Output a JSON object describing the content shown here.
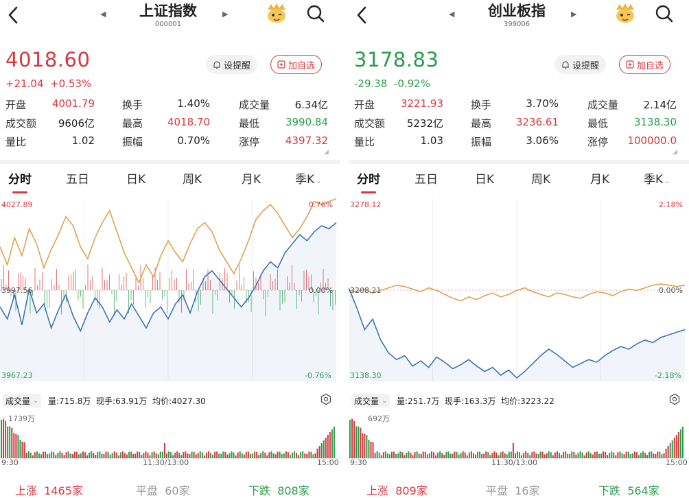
{
  "left": {
    "title": "上证指数",
    "code": "000001",
    "price": "4018.60",
    "change": "+21.04",
    "change_pct": "+0.53%",
    "trend": "up",
    "alert_label": "设提醒",
    "add_label": "加自选",
    "stats": [
      [
        {
          "label": "开盘",
          "value": "4001.79",
          "color": "red"
        },
        {
          "label": "换手",
          "value": "1.40%",
          "color": "black"
        },
        {
          "label": "成交量",
          "value": "6.34亿",
          "color": "black"
        }
      ],
      [
        {
          "label": "成交额",
          "value": "9606亿",
          "color": "black"
        },
        {
          "label": "最高",
          "value": "4018.70",
          "color": "red"
        },
        {
          "label": "最低",
          "value": "3990.84",
          "color": "green"
        }
      ],
      [
        {
          "label": "量比",
          "value": "1.02",
          "color": "black"
        },
        {
          "label": "振幅",
          "value": "0.70%",
          "color": "black"
        },
        {
          "label": "涨停",
          "value": "4397.32",
          "color": "red"
        }
      ]
    ],
    "tabs": [
      "分时",
      "五日",
      "日K",
      "周K",
      "月K",
      "季K"
    ],
    "axis": {
      "top_left": "4027.89",
      "mid_left": "3997.56",
      "bottom_left": "3967.23",
      "top_right": "0.76%",
      "mid_right": "0.00%",
      "bottom_right": "-0.76%"
    },
    "volume": {
      "select_label": "成交量",
      "vol": "量:715.8万",
      "now": "现手:63.91万",
      "avg": "均价:4027.30",
      "max_label": "1739万"
    },
    "times": [
      "9:30",
      "11:30/13:00",
      "15:00"
    ],
    "breadth": {
      "up_label": "上涨",
      "up_value": "1465家",
      "flat_label": "平盘",
      "flat_value": "60家",
      "down_label": "下跌",
      "down_value": "808家"
    }
  },
  "right": {
    "title": "创业板指",
    "code": "399006",
    "price": "3178.83",
    "change": "-29.38",
    "change_pct": "-0.92%",
    "trend": "down",
    "alert_label": "设提醒",
    "add_label": "加自选",
    "stats": [
      [
        {
          "label": "开盘",
          "value": "3221.93",
          "color": "red"
        },
        {
          "label": "换手",
          "value": "3.70%",
          "color": "black"
        },
        {
          "label": "成交量",
          "value": "2.14亿",
          "color": "black"
        }
      ],
      [
        {
          "label": "成交额",
          "value": "5232亿",
          "color": "black"
        },
        {
          "label": "最高",
          "value": "3236.61",
          "color": "red"
        },
        {
          "label": "最低",
          "value": "3138.30",
          "color": "green"
        }
      ],
      [
        {
          "label": "量比",
          "value": "1.03",
          "color": "black"
        },
        {
          "label": "振幅",
          "value": "3.06%",
          "color": "black"
        },
        {
          "label": "涨停",
          "value": "100000.0",
          "color": "red"
        }
      ]
    ],
    "tabs": [
      "分时",
      "五日",
      "日K",
      "周K",
      "月K",
      "季K"
    ],
    "axis": {
      "top_left": "3278.12",
      "mid_left": "3208.21",
      "bottom_left": "3138.30",
      "top_right": "2.18%",
      "mid_right": "0.00%",
      "bottom_right": "-2.18%"
    },
    "volume": {
      "select_label": "成交量",
      "vol": "量:251.7万",
      "now": "现手:163.3万",
      "avg": "均价:3223.22",
      "max_label": "692万"
    },
    "times": [
      "9:30",
      "11:30/13:00",
      "15:00"
    ],
    "breadth": {
      "up_label": "上涨",
      "up_value": "809家",
      "flat_label": "平盘",
      "flat_value": "16家",
      "down_label": "下跌",
      "down_value": "564家"
    }
  },
  "colors": {
    "up": "#d9363e",
    "down": "#2a9d4b",
    "price_line": "#3a72b8",
    "avg_line": "#e3a04f"
  },
  "chart_data": [
    {
      "type": "line",
      "series": [
        {
          "values": [
            4012,
            4006,
            4015,
            4009,
            4018,
            4013,
            4005,
            4011,
            4016,
            4022,
            4019,
            4012,
            4008,
            4015,
            4020,
            4024,
            4017,
            4010,
            4005,
            4000,
            4006,
            4002,
            4009,
            4014,
            4010,
            4007,
            4013,
            4018,
            4020,
            4017,
            4011,
            4007,
            4003,
            4008,
            4014,
            4021,
            4024,
            4026,
            4023,
            4019,
            4015,
            4018,
            4022,
            4027,
            4026,
            4027,
            4028
          ]
        },
        {
          "values": [
            3992,
            3988,
            3996,
            3986,
            3998,
            3990,
            3993,
            3985,
            3991,
            3996,
            3989,
            3984,
            3990,
            3995,
            3992,
            3987,
            3991,
            3988,
            3993,
            3989,
            3985,
            3990,
            3992,
            3988,
            3993,
            3996,
            3990,
            3997,
            4002,
            4004,
            4001,
            3998,
            3995,
            3992,
            3995,
            3999,
            4004,
            4007,
            4005,
            4010,
            4013,
            4016,
            4014,
            4017,
            4019,
            4018,
            4020
          ]
        }
      ],
      "ylim": [
        3967.23,
        4027.89
      ]
    },
    {
      "type": "line",
      "series": [
        {
          "values": [
            3208,
            3207,
            3209,
            3206,
            3208,
            3210,
            3212,
            3211,
            3209,
            3207,
            3210,
            3208,
            3205,
            3202,
            3200,
            3203,
            3201,
            3204,
            3206,
            3203,
            3205,
            3208,
            3210,
            3207,
            3205,
            3203,
            3206,
            3205,
            3203,
            3202,
            3205,
            3207,
            3206,
            3204,
            3207,
            3209,
            3208,
            3210,
            3212,
            3213,
            3212,
            3211,
            3212
          ]
        },
        {
          "values": [
            3210,
            3195,
            3178,
            3186,
            3170,
            3160,
            3155,
            3158,
            3150,
            3154,
            3149,
            3157,
            3153,
            3148,
            3151,
            3155,
            3150,
            3146,
            3149,
            3143,
            3147,
            3141,
            3146,
            3152,
            3158,
            3163,
            3159,
            3154,
            3149,
            3152,
            3155,
            3153,
            3158,
            3162,
            3165,
            3163,
            3167,
            3170,
            3168,
            3172,
            3174,
            3176,
            3178
          ]
        }
      ],
      "ylim": [
        3138.3,
        3278.12
      ]
    }
  ]
}
